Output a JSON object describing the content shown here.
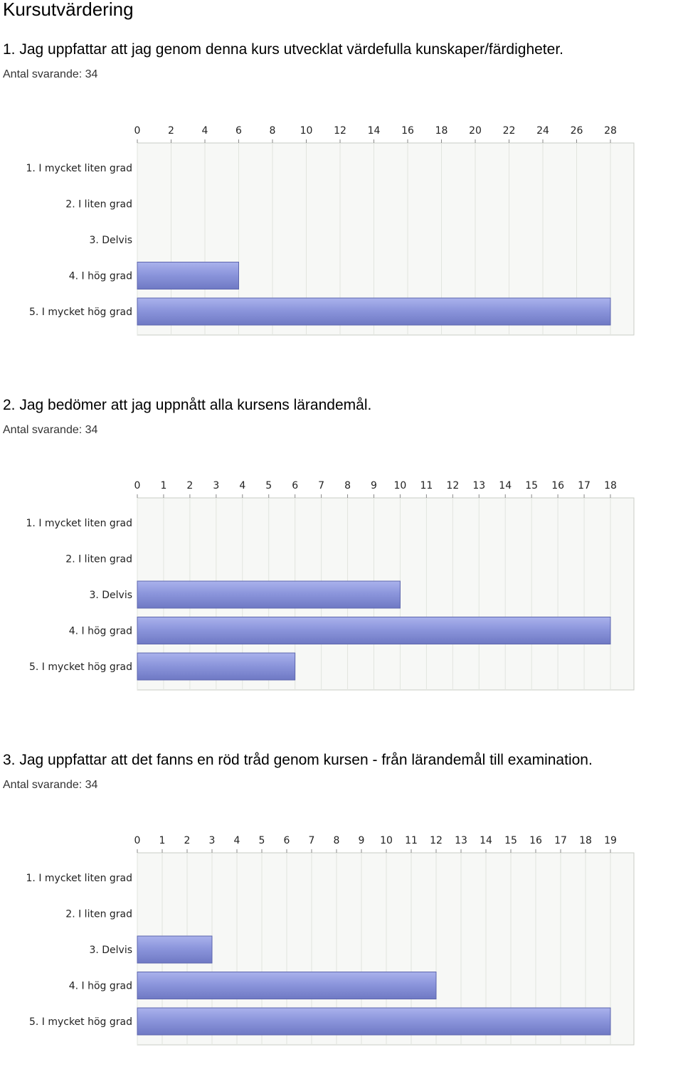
{
  "page_title": "Kursutvärdering",
  "questions": [
    {
      "title": "1. Jag uppfattar att jag genom denna kurs utvecklat värdefulla kunskaper/färdigheter.",
      "count_label": "Antal svarande: 34"
    },
    {
      "title": "2. Jag bedömer att jag uppnått alla kursens lärandemål.",
      "count_label": "Antal svarande: 34"
    },
    {
      "title": "3. Jag uppfattar att det fanns en röd tråd genom kursen - från lärandemål till examination.",
      "count_label": "Antal svarande: 34"
    }
  ],
  "chart_data": [
    {
      "type": "bar",
      "orientation": "horizontal",
      "categories": [
        "1. I mycket liten grad",
        "2. I liten grad",
        "3. Delvis",
        "4. I hög grad",
        "5. I mycket hög grad"
      ],
      "values": [
        0,
        0,
        0,
        6,
        28
      ],
      "xticks": [
        0,
        2,
        4,
        6,
        8,
        10,
        12,
        14,
        16,
        18,
        20,
        22,
        24,
        26,
        28
      ],
      "xlim": [
        0,
        28
      ],
      "xaxis_position": "top",
      "grid": true,
      "bar_color": "#8c96dc"
    },
    {
      "type": "bar",
      "orientation": "horizontal",
      "categories": [
        "1. I mycket liten grad",
        "2. I liten grad",
        "3. Delvis",
        "4. I hög grad",
        "5. I mycket hög grad"
      ],
      "values": [
        0,
        0,
        10,
        18,
        6
      ],
      "xticks": [
        0,
        1,
        2,
        3,
        4,
        5,
        6,
        7,
        8,
        9,
        10,
        11,
        12,
        13,
        14,
        15,
        16,
        17,
        18
      ],
      "xlim": [
        0,
        18
      ],
      "xaxis_position": "top",
      "grid": true,
      "bar_color": "#8c96dc"
    },
    {
      "type": "bar",
      "orientation": "horizontal",
      "categories": [
        "1. I mycket liten grad",
        "2. I liten grad",
        "3. Delvis",
        "4. I hög grad",
        "5. I mycket hög grad"
      ],
      "values": [
        0,
        0,
        3,
        12,
        19
      ],
      "xticks": [
        0,
        1,
        2,
        3,
        4,
        5,
        6,
        7,
        8,
        9,
        10,
        11,
        12,
        13,
        14,
        15,
        16,
        17,
        18,
        19
      ],
      "xlim": [
        0,
        19
      ],
      "xaxis_position": "top",
      "grid": true,
      "bar_color": "#8c96dc"
    }
  ]
}
